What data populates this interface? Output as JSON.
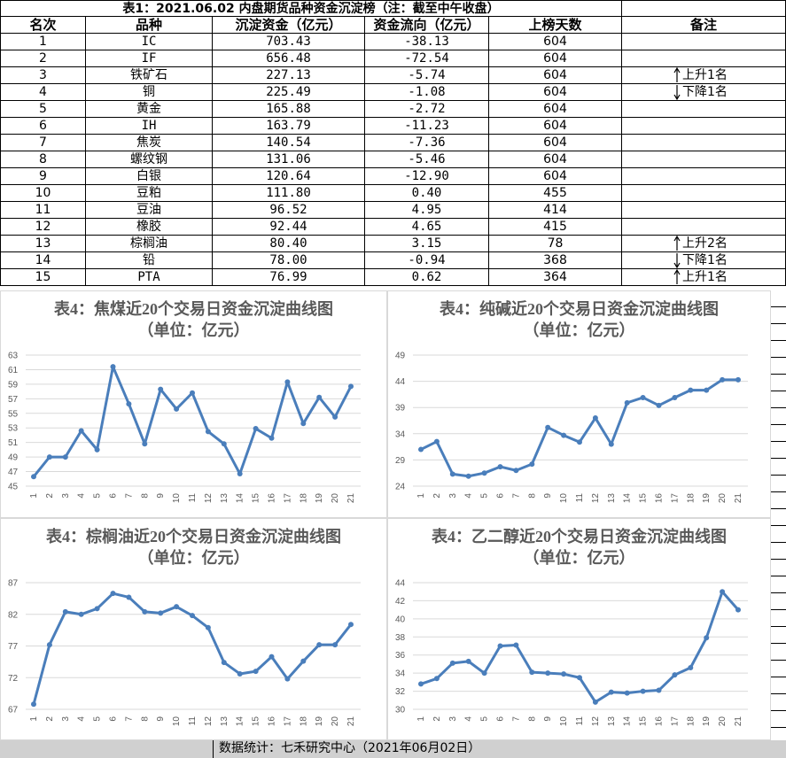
{
  "table": {
    "title": "表1：2021.06.02 内盘期货品种资金沉淀榜（注：截至中午收盘）",
    "header": [
      "名次",
      "品种",
      "沉淀资金（亿元）",
      "资金流向（亿元）",
      "上榜天数",
      "备注"
    ],
    "rows": [
      [
        "1",
        "IC",
        "703.43",
        "-38.13",
        "604",
        ""
      ],
      [
        "2",
        "IF",
        "656.48",
        "-72.54",
        "604",
        ""
      ],
      [
        "3",
        "铁矿石",
        "227.13",
        "-5.74",
        "604",
        "上升1名"
      ],
      [
        "4",
        "铜",
        "225.49",
        "-1.08",
        "604",
        "下降1名"
      ],
      [
        "5",
        "黄金",
        "165.88",
        "-2.72",
        "604",
        ""
      ],
      [
        "6",
        "IH",
        "163.79",
        "-11.23",
        "604",
        ""
      ],
      [
        "7",
        "焦炭",
        "140.54",
        "-7.36",
        "604",
        ""
      ],
      [
        "8",
        "螺纹钢",
        "131.06",
        "-5.46",
        "604",
        ""
      ],
      [
        "9",
        "白银",
        "120.64",
        "-12.90",
        "604",
        ""
      ],
      [
        "10",
        "豆粕",
        "111.80",
        "0.40",
        "455",
        ""
      ],
      [
        "11",
        "豆油",
        "96.52",
        "4.95",
        "414",
        ""
      ],
      [
        "12",
        "橡胶",
        "92.44",
        "4.65",
        "415",
        ""
      ],
      [
        "13",
        "棕榈油",
        "80.40",
        "3.15",
        "78",
        "上升2名"
      ],
      [
        "14",
        "铅",
        "78.00",
        "-0.94",
        "368",
        "下降1名"
      ],
      [
        "15",
        "PTA",
        "76.99",
        "0.62",
        "364",
        "上升1名"
      ]
    ]
  },
  "chart_data": [
    {
      "type": "line",
      "title": "表4：焦煤近20个交易日资金沉淀曲线图（单位：亿元）",
      "color": "#4a7ebb",
      "grid": true,
      "categories": [
        "1",
        "2",
        "3",
        "4",
        "5",
        "6",
        "7",
        "8",
        "9",
        "10",
        "11",
        "12",
        "13",
        "14",
        "15",
        "16",
        "17",
        "18",
        "19",
        "20",
        "21"
      ],
      "values": [
        46.3,
        49,
        49,
        52.6,
        50,
        61.4,
        56.3,
        50.8,
        58.3,
        55.6,
        57.8,
        52.5,
        50.8,
        46.7,
        52.9,
        51.6,
        59.3,
        53.6,
        57.2,
        54.5,
        58.7
      ],
      "ylim": [
        45,
        63
      ],
      "yticks": [
        45,
        47,
        49,
        51,
        53,
        55,
        57,
        59,
        61,
        63
      ]
    },
    {
      "type": "line",
      "title": "表4：纯碱近20个交易日资金沉淀曲线图（单位：亿元）",
      "color": "#4a7ebb",
      "grid": true,
      "categories": [
        "1",
        "2",
        "3",
        "4",
        "5",
        "6",
        "7",
        "8",
        "9",
        "10",
        "11",
        "12",
        "13",
        "14",
        "15",
        "16",
        "17",
        "18",
        "19",
        "20",
        "21"
      ],
      "values": [
        31,
        32.5,
        26.3,
        25.9,
        26.5,
        27.7,
        27,
        28.2,
        35.2,
        33.7,
        32.4,
        37,
        32,
        39.9,
        40.9,
        39.4,
        40.9,
        42.3,
        42.3,
        44.3,
        44.3
      ],
      "ylim": [
        24,
        49
      ],
      "yticks": [
        24,
        29,
        34,
        39,
        44,
        49
      ]
    },
    {
      "type": "line",
      "title": "表4：棕榈油近20个交易日资金沉淀曲线图（单位：亿元）",
      "color": "#4a7ebb",
      "grid": true,
      "categories": [
        "1",
        "2",
        "3",
        "4",
        "5",
        "6",
        "7",
        "8",
        "9",
        "10",
        "11",
        "12",
        "13",
        "14",
        "15",
        "16",
        "17",
        "18",
        "19",
        "20",
        "21"
      ],
      "values": [
        67.8,
        77.2,
        82.4,
        82,
        82.9,
        85.3,
        84.7,
        82.4,
        82.2,
        83.2,
        81.8,
        79.9,
        74.4,
        72.6,
        73,
        75.3,
        71.8,
        74.6,
        77.2,
        77.2,
        80.4
      ],
      "ylim": [
        67,
        87
      ],
      "yticks": [
        67,
        72,
        77,
        82,
        87
      ]
    },
    {
      "type": "line",
      "title": "表4：乙二醇近20个交易日资金沉淀曲线图（单位：亿元）",
      "color": "#4a7ebb",
      "grid": true,
      "categories": [
        "1",
        "2",
        "3",
        "4",
        "5",
        "6",
        "7",
        "8",
        "9",
        "10",
        "11",
        "12",
        "13",
        "14",
        "15",
        "16",
        "17",
        "18",
        "19",
        "20",
        "21"
      ],
      "values": [
        32.8,
        33.4,
        35.1,
        35.3,
        34,
        37,
        37.1,
        34.1,
        34,
        33.9,
        33.5,
        30.8,
        31.9,
        31.8,
        32,
        32.1,
        33.8,
        34.6,
        37.9,
        43,
        41
      ],
      "ylim": [
        30,
        44
      ],
      "yticks": [
        30,
        32,
        34,
        36,
        38,
        40,
        42,
        44
      ]
    }
  ],
  "footer": "数据统计：七禾研究中心（2021年06月02日）"
}
